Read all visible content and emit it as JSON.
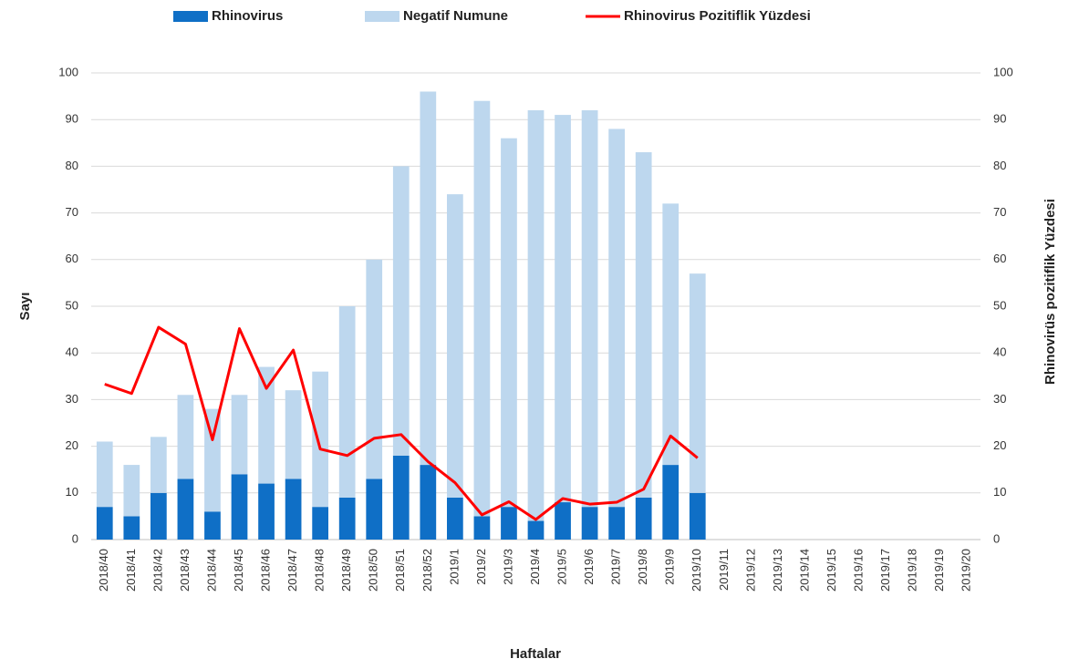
{
  "chart_data": {
    "type": "bar",
    "categories": [
      "2018/40",
      "2018/41",
      "2018/42",
      "2018/43",
      "2018/44",
      "2018/45",
      "2018/46",
      "2018/47",
      "2018/48",
      "2018/49",
      "2018/50",
      "2018/51",
      "2018/52",
      "2019/1",
      "2019/2",
      "2019/3",
      "2019/4",
      "2019/5",
      "2019/6",
      "2019/7",
      "2019/8",
      "2019/9",
      "2019/10",
      "2019/11",
      "2019/12",
      "2019/13",
      "2019/14",
      "2019/15",
      "2019/16",
      "2019/17",
      "2019/18",
      "2019/19",
      "2019/20"
    ],
    "series": [
      {
        "name": "Rhinovirus",
        "type": "bar",
        "color": "#0f6fc6",
        "values": [
          7,
          5,
          10,
          13,
          6,
          14,
          12,
          13,
          7,
          9,
          13,
          18,
          16,
          9,
          5,
          7,
          4,
          8,
          7,
          7,
          9,
          16,
          10,
          null,
          null,
          null,
          null,
          null,
          null,
          null,
          null,
          null,
          null
        ]
      },
      {
        "name": "Negatif Numune",
        "type": "bar",
        "color": "#bdd7ee",
        "values": [
          14,
          11,
          12,
          18,
          22,
          17,
          25,
          19,
          29,
          41,
          47,
          62,
          80,
          65,
          89,
          79,
          88,
          83,
          85,
          81,
          74,
          56,
          47,
          null,
          null,
          null,
          null,
          null,
          null,
          null,
          null,
          null,
          null
        ]
      },
      {
        "name": "Rhinovirus Pozitiflik Yüzdesi",
        "type": "line",
        "axis": "y2",
        "color": "#ff0000",
        "values": [
          33.3,
          31.3,
          45.5,
          41.9,
          21.4,
          45.2,
          32.4,
          40.6,
          19.4,
          18,
          21.7,
          22.5,
          16.7,
          12.2,
          5.3,
          8.1,
          4.3,
          8.8,
          7.6,
          8,
          10.8,
          22.2,
          17.5,
          null,
          null,
          null,
          null,
          null,
          null,
          null,
          null,
          null,
          null
        ]
      }
    ],
    "stacked": true,
    "ylabel": "Sayı",
    "y2label": "Rhinovirüs pozitiflik Yüzdesi",
    "xlabel": "Haftalar",
    "ylim": [
      0,
      100
    ],
    "yticks": [
      0,
      10,
      20,
      30,
      40,
      50,
      60,
      70,
      80,
      90,
      100
    ],
    "y2lim": [
      0,
      100
    ],
    "y2ticks": [
      0,
      10,
      20,
      30,
      40,
      50,
      60,
      70,
      80,
      90,
      100
    ],
    "grid": true,
    "legend": "top"
  }
}
